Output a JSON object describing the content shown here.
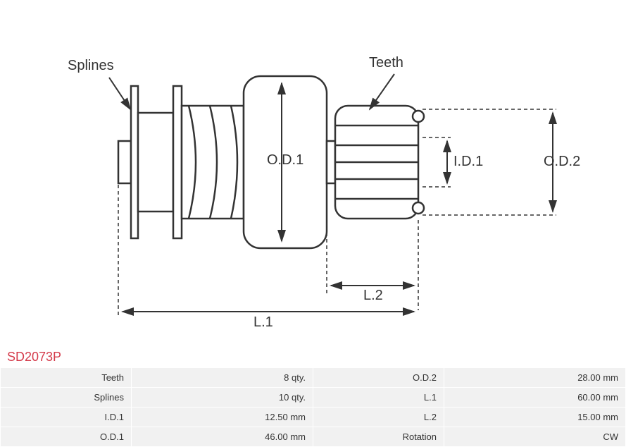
{
  "part_number": "SD2073P",
  "diagram": {
    "labels": {
      "splines": "Splines",
      "teeth": "Teeth",
      "od1": "O.D.1",
      "od2": "O.D.2",
      "id1": "I.D.1",
      "l1": "L.1",
      "l2": "L.2"
    },
    "stroke_color": "#333333",
    "stroke_width": 2.5,
    "dash_pattern": "5,4"
  },
  "specs": {
    "left": [
      {
        "label": "Teeth",
        "value": "8 qty."
      },
      {
        "label": "Splines",
        "value": "10 qty."
      },
      {
        "label": "I.D.1",
        "value": "12.50 mm"
      },
      {
        "label": "O.D.1",
        "value": "46.00 mm"
      }
    ],
    "right": [
      {
        "label": "O.D.2",
        "value": "28.00 mm"
      },
      {
        "label": "L.1",
        "value": "60.00 mm"
      },
      {
        "label": "L.2",
        "value": "15.00 mm"
      },
      {
        "label": "Rotation",
        "value": "CW"
      }
    ]
  },
  "table_style": {
    "row_bg": "#f1f1f1",
    "font_size": 13,
    "text_color": "#333333"
  }
}
